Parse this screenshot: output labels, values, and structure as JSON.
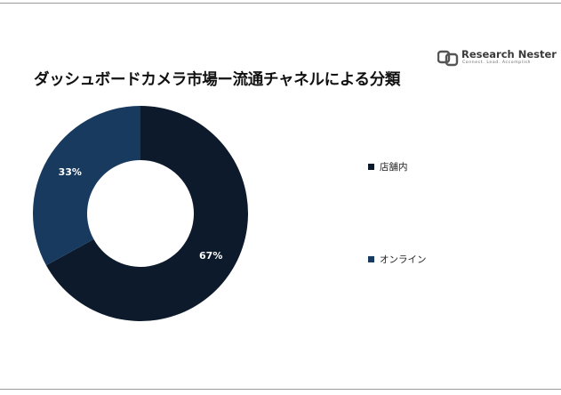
{
  "title": "ダッシュボードカメラ市場ー流通チャネルによる分類",
  "logo": {
    "name": "Research Nester",
    "tagline": "Connect. Lead. Accomplish",
    "icon": "research-nester-logo-icon"
  },
  "colors": {
    "slice_1": "#0c1a2b",
    "slice_2": "#173a5e",
    "label": "#ffffff",
    "rule": "#9a9a9a"
  },
  "chart_data": {
    "type": "pie",
    "donut": true,
    "title": "ダッシュボードカメラ市場ー流通チャネルによる分類",
    "categories": [
      "店舗内",
      "オンライン"
    ],
    "values": [
      67,
      33
    ],
    "labels": [
      "67%",
      "33%"
    ],
    "legend_position": "right"
  }
}
